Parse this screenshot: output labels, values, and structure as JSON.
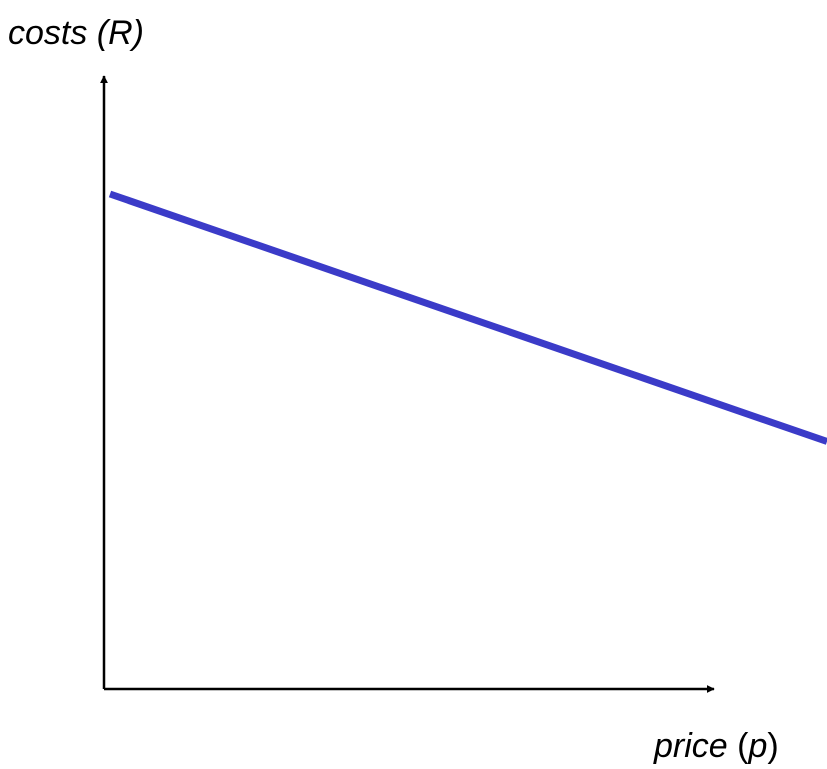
{
  "chart_data": {
    "type": "line",
    "title": "",
    "ylabel": "costs (R)",
    "xlabel": {
      "word": "price",
      "symbol": "p"
    },
    "series": [
      {
        "x": [
          0,
          1
        ],
        "y": [
          1.0,
          0.5
        ]
      }
    ],
    "xlim": [
      0,
      1
    ],
    "ylim": [
      0,
      1.2
    ],
    "grid": false,
    "colors": {
      "line": "#3b3bc8",
      "axis": "#000000"
    }
  }
}
